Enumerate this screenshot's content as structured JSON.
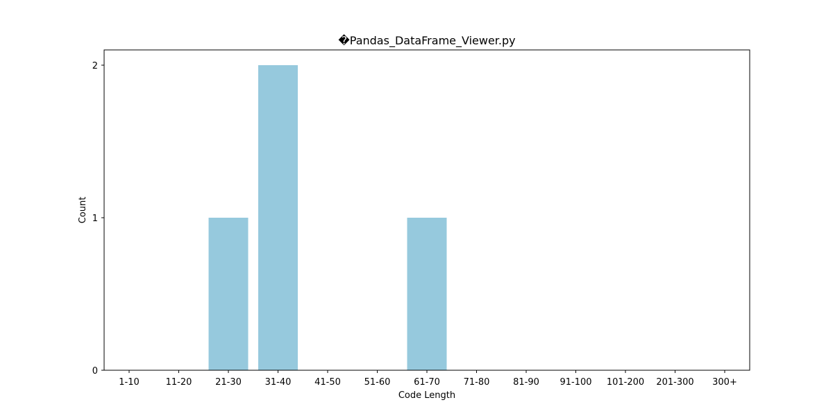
{
  "chart_data": {
    "type": "bar",
    "title": "�Pandas_DataFrame_Viewer.py",
    "xlabel": "Code Length",
    "ylabel": "Count",
    "categories": [
      "1-10",
      "11-20",
      "21-30",
      "31-40",
      "41-50",
      "51-60",
      "61-70",
      "71-80",
      "81-90",
      "91-100",
      "101-200",
      "201-300",
      "300+"
    ],
    "values": [
      0,
      0,
      1,
      2,
      0,
      0,
      1,
      0,
      0,
      0,
      0,
      0,
      0
    ],
    "ylim": [
      0,
      2.1
    ],
    "yticks": [
      0,
      1,
      2
    ],
    "bar_color": "#96c9dd",
    "grid": false,
    "legend": "none"
  }
}
